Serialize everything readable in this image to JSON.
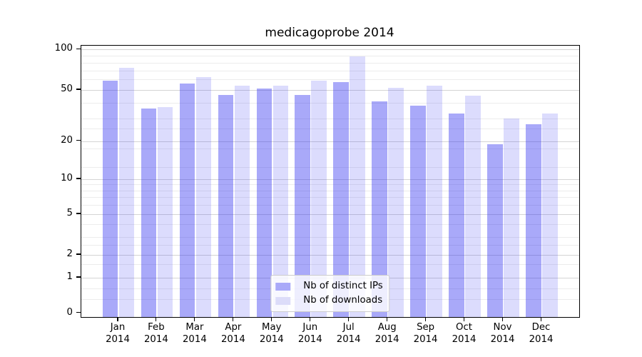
{
  "title": "medicagoprobe 2014",
  "chart_data": {
    "type": "bar",
    "title": "medicagoprobe 2014",
    "xlabel": "",
    "ylabel": "",
    "categories": [
      "Jan",
      "Feb",
      "Mar",
      "Apr",
      "May",
      "Jun",
      "Jul",
      "Aug",
      "Sep",
      "Oct",
      "Nov",
      "Dec"
    ],
    "year": "2014",
    "series": [
      {
        "name": "Nb of distinct IPs",
        "values": [
          59,
          36,
          56,
          46,
          51,
          46,
          57,
          41,
          38,
          33,
          19,
          27
        ],
        "fill": "rgba(40,40,240,0.40)",
        "swatch": "#a9a9f9"
      },
      {
        "name": "Nb of downloads",
        "values": [
          73,
          37,
          62,
          54,
          54,
          59,
          89,
          52,
          54,
          45,
          30,
          33
        ],
        "fill": "rgba(40,40,240,0.16)",
        "swatch": "#dcdcf9"
      }
    ],
    "yticks": [
      100,
      50,
      20,
      10,
      5,
      2,
      1,
      0
    ],
    "minor_gridlines": [
      90,
      80,
      70,
      60,
      40,
      30,
      25,
      17.5,
      12.5,
      9,
      8,
      7,
      6,
      4,
      3,
      2.5,
      1.5,
      0.7,
      0.4
    ],
    "yscale": "symlog",
    "ylim": [
      0,
      110
    ],
    "legend_position": "lower center",
    "grid": true,
    "colors": {
      "distinct_ips": "#a9a9f9",
      "downloads": "#dcdcf9",
      "major_grid": "#d4d4d4",
      "minor_grid": "#ececec",
      "frame": "#000000"
    }
  }
}
